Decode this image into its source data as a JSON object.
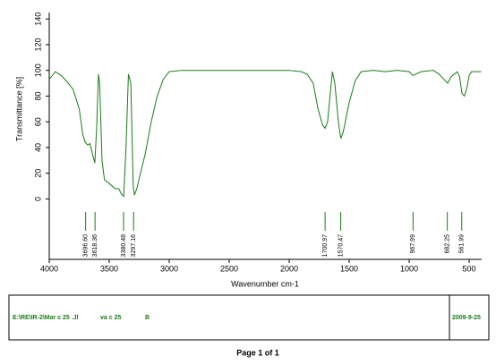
{
  "chart_data": {
    "type": "line",
    "y_label": "Transmittance [%]",
    "x_label": "Wavenumber cm-1",
    "color": "#1a7a1a",
    "x": [
      4000,
      3950,
      3900,
      3850,
      3800,
      3750,
      3720,
      3700,
      3680,
      3660,
      3640,
      3620,
      3605,
      3590,
      3580,
      3560,
      3540,
      3500,
      3450,
      3420,
      3400,
      3380,
      3360,
      3340,
      3320,
      3300,
      3290,
      3270,
      3240,
      3200,
      3150,
      3100,
      3050,
      3000,
      2900,
      2500,
      2000,
      1900,
      1850,
      1800,
      1760,
      1720,
      1700,
      1680,
      1660,
      1640,
      1620,
      1590,
      1570,
      1550,
      1500,
      1450,
      1400,
      1300,
      1200,
      1100,
      1000,
      970,
      900,
      800,
      750,
      700,
      680,
      650,
      600,
      580,
      560,
      540,
      520,
      500,
      480,
      400
    ],
    "values": [
      93,
      99,
      96,
      91,
      85,
      70,
      50,
      44,
      42,
      43,
      35,
      28,
      55,
      97,
      90,
      30,
      15,
      12,
      8,
      8,
      4,
      2,
      40,
      97,
      90,
      10,
      3,
      8,
      20,
      35,
      60,
      80,
      93,
      99,
      100,
      100,
      100,
      99,
      97,
      90,
      70,
      57,
      55,
      60,
      80,
      99,
      90,
      60,
      47,
      52,
      75,
      92,
      99,
      100,
      99,
      100,
      99,
      96,
      99,
      100,
      97,
      92,
      90,
      95,
      99,
      95,
      82,
      80,
      86,
      96,
      99,
      99
    ],
    "xlim": [
      4000,
      396
    ],
    "ylim": [
      -47,
      145
    ],
    "xticks": [
      4000,
      3500,
      3000,
      2500,
      2000,
      1500,
      1000,
      500
    ],
    "yticks": [
      0,
      20,
      40,
      60,
      80,
      100,
      120,
      140
    ],
    "peaks": [
      {
        "value": 3696.6,
        "label": "3696.60"
      },
      {
        "value": 3618.36,
        "label": "3618.36"
      },
      {
        "value": 3380.48,
        "label": "3380.48"
      },
      {
        "value": 3297.16,
        "label": "3297.16"
      },
      {
        "value": 1700.97,
        "label": "1700.97"
      },
      {
        "value": 1570.47,
        "label": "1570.47"
      },
      {
        "value": 967.99,
        "label": "967.99"
      },
      {
        "value": 682.25,
        "label": "682.25"
      },
      {
        "value": 561.99,
        "label": "561.99"
      }
    ]
  },
  "footer": {
    "file": "E:\\RE\\IR-2\\Mar c 25 .Jl",
    "sample": "va c 25",
    "mark": "B",
    "date": "2009-9-25",
    "page": "Page 1 of 1"
  }
}
